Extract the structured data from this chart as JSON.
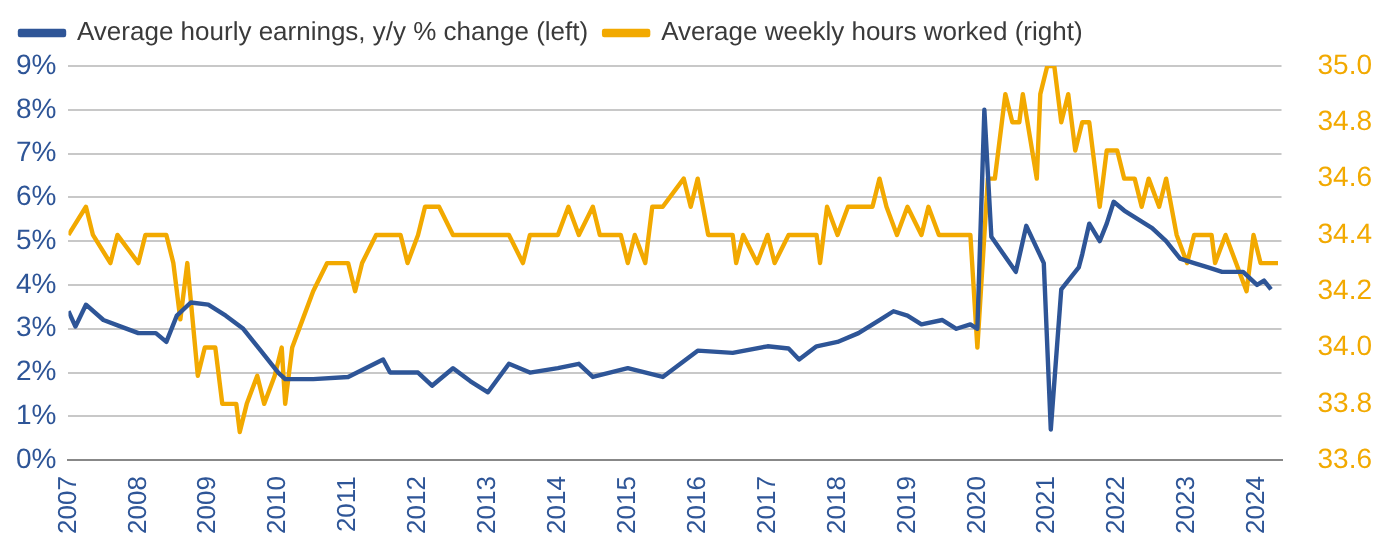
{
  "chart_data": {
    "type": "line",
    "xlim": [
      2007,
      2024.35
    ],
    "xticks": [
      2007,
      2008,
      2009,
      2010,
      2011,
      2012,
      2013,
      2014,
      2015,
      2016,
      2017,
      2018,
      2019,
      2020,
      2021,
      2022,
      2023,
      2024
    ],
    "ylim": [
      0,
      9
    ],
    "yticks": [
      {
        "value": 0,
        "label": "0%"
      },
      {
        "value": 1,
        "label": "1%"
      },
      {
        "value": 2,
        "label": "2%"
      },
      {
        "value": 3,
        "label": "3%"
      },
      {
        "value": 4,
        "label": "4%"
      },
      {
        "value": 5,
        "label": "5%"
      },
      {
        "value": 6,
        "label": "6%"
      },
      {
        "value": 7,
        "label": "7%"
      },
      {
        "value": 8,
        "label": "8%"
      },
      {
        "value": 9,
        "label": "9%"
      }
    ],
    "y2lim": [
      33.6,
      35
    ],
    "y2ticks": [
      {
        "value": 33.6,
        "label": "33.6"
      },
      {
        "value": 33.8,
        "label": "33.8"
      },
      {
        "value": 34,
        "label": "34.0"
      },
      {
        "value": 34.2,
        "label": "34.2"
      },
      {
        "value": 34.4,
        "label": "34.4"
      },
      {
        "value": 34.6,
        "label": "34.6"
      },
      {
        "value": 34.8,
        "label": "34.8"
      },
      {
        "value": 35,
        "label": "35.0"
      }
    ],
    "grid": "y",
    "legend": "top",
    "marker": "none",
    "line_style": "solid",
    "series": [
      {
        "name": "Average hourly earnings, y/y % change (left)",
        "color": "#2e5597",
        "x": [
          2007,
          2007.1,
          2007.25,
          2007.5,
          2007.75,
          2008,
          2008.25,
          2008.4,
          2008.55,
          2008.75,
          2009,
          2009.25,
          2009.5,
          2009.75,
          2010,
          2010.1,
          2010.5,
          2011,
          2011.5,
          2011.6,
          2012,
          2012.2,
          2012.5,
          2012.75,
          2013,
          2013.3,
          2013.6,
          2014,
          2014.3,
          2014.5,
          2015,
          2015.5,
          2016,
          2016.5,
          2017,
          2017.3,
          2017.45,
          2017.7,
          2018,
          2018.3,
          2018.6,
          2018.8,
          2019,
          2019.2,
          2019.5,
          2019.7,
          2019.9,
          2020,
          2020.1,
          2020.2,
          2020.55,
          2020.7,
          2020.95,
          2021.05,
          2021.2,
          2021.45,
          2021.5,
          2021.6,
          2021.75,
          2021.85,
          2021.95,
          2022.1,
          2022.3,
          2022.5,
          2022.7,
          2022.9,
          2023.1,
          2023.3,
          2023.5,
          2023.8,
          2024,
          2024.1,
          2024.2
        ],
        "values": [
          3.4,
          3.05,
          3.55,
          3.2,
          3.05,
          2.9,
          2.9,
          2.7,
          3.3,
          3.6,
          3.55,
          3.3,
          3,
          2.5,
          2,
          1.85,
          1.85,
          1.9,
          2.3,
          2,
          2,
          1.7,
          2.1,
          1.8,
          1.55,
          2.2,
          2,
          2.1,
          2.2,
          1.9,
          2.1,
          1.9,
          2.5,
          2.45,
          2.6,
          2.55,
          2.3,
          2.6,
          2.7,
          2.9,
          3.2,
          3.4,
          3.3,
          3.1,
          3.2,
          3,
          3.1,
          3,
          8,
          5.1,
          4.3,
          5.35,
          4.5,
          0.7,
          3.9,
          4.4,
          4.7,
          5.4,
          5,
          5.4,
          5.9,
          5.7,
          5.5,
          5.3,
          5,
          4.6,
          4.5,
          4.4,
          4.3,
          4.3,
          4,
          4.1,
          3.9
        ]
      },
      {
        "name": "Average weekly hours worked (right)",
        "color": "#f2a900",
        "axis": "y2",
        "x": [
          2007,
          2007.25,
          2007.35,
          2007.6,
          2007.7,
          2008,
          2008.1,
          2008.4,
          2008.5,
          2008.6,
          2008.7,
          2008.85,
          2008.95,
          2009.1,
          2009.2,
          2009.4,
          2009.45,
          2009.55,
          2009.7,
          2009.8,
          2009.95,
          2010.05,
          2010.1,
          2010.2,
          2010.35,
          2010.5,
          2010.7,
          2011,
          2011.1,
          2011.2,
          2011.4,
          2011.75,
          2011.85,
          2012,
          2012.1,
          2012.3,
          2012.5,
          2013.3,
          2013.5,
          2013.6,
          2014,
          2014.15,
          2014.3,
          2014.5,
          2014.6,
          2014.9,
          2015,
          2015.1,
          2015.25,
          2015.35,
          2015.5,
          2015.8,
          2015.9,
          2016,
          2016.15,
          2016.5,
          2016.55,
          2016.65,
          2016.85,
          2017,
          2017.1,
          2017.3,
          2017.7,
          2017.75,
          2017.85,
          2018,
          2018.15,
          2018.5,
          2018.6,
          2018.7,
          2018.85,
          2019,
          2019.2,
          2019.3,
          2019.45,
          2019.9,
          2020,
          2020.15,
          2020.25,
          2020.4,
          2020.5,
          2020.6,
          2020.65,
          2020.85,
          2020.9,
          2021,
          2021.1,
          2021.2,
          2021.3,
          2021.4,
          2021.5,
          2021.6,
          2021.75,
          2021.85,
          2022,
          2022.1,
          2022.25,
          2022.35,
          2022.45,
          2022.6,
          2022.7,
          2022.85,
          2023,
          2023.1,
          2023.35,
          2023.4,
          2023.55,
          2023.7,
          2023.85,
          2023.95,
          2024.05,
          2024.3
        ],
        "values": [
          34.4,
          34.5,
          34.4,
          34.3,
          34.4,
          34.3,
          34.4,
          34.4,
          34.3,
          34.1,
          34.3,
          33.9,
          34,
          34,
          33.8,
          33.8,
          33.7,
          33.8,
          33.9,
          33.8,
          33.9,
          34,
          33.8,
          34,
          34.1,
          34.2,
          34.3,
          34.3,
          34.2,
          34.3,
          34.4,
          34.4,
          34.3,
          34.4,
          34.5,
          34.5,
          34.4,
          34.4,
          34.3,
          34.4,
          34.4,
          34.5,
          34.4,
          34.5,
          34.4,
          34.4,
          34.3,
          34.4,
          34.3,
          34.5,
          34.5,
          34.6,
          34.5,
          34.6,
          34.4,
          34.4,
          34.3,
          34.4,
          34.3,
          34.4,
          34.3,
          34.4,
          34.4,
          34.3,
          34.5,
          34.4,
          34.5,
          34.5,
          34.6,
          34.5,
          34.4,
          34.5,
          34.4,
          34.5,
          34.4,
          34.4,
          34,
          34.6,
          34.6,
          34.9,
          34.8,
          34.8,
          34.9,
          34.6,
          34.9,
          35,
          35,
          34.8,
          34.9,
          34.7,
          34.8,
          34.8,
          34.5,
          34.7,
          34.7,
          34.6,
          34.6,
          34.5,
          34.6,
          34.5,
          34.6,
          34.4,
          34.3,
          34.4,
          34.4,
          34.3,
          34.4,
          34.3,
          34.2,
          34.4,
          34.3,
          34.3
        ]
      }
    ]
  }
}
